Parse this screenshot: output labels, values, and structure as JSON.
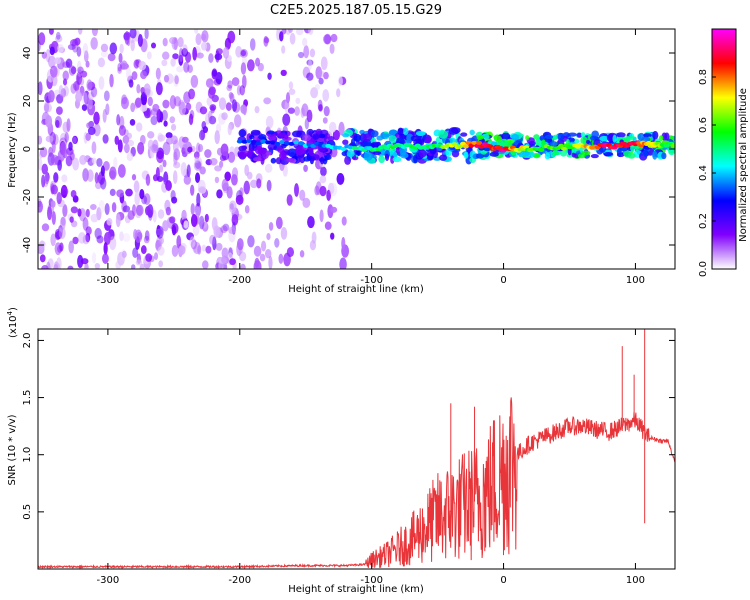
{
  "page_title": "C2E5.2025.187.05.15.G29",
  "chart_data": [
    {
      "type": "heatmap",
      "title": "C2E5.2025.187.05.15.G29",
      "xlabel": "Height of straight line (km)",
      "ylabel": "Frequency (Hz)",
      "xlim": [
        -353,
        130
      ],
      "ylim": [
        -50,
        50
      ],
      "x_ticks": [
        "-300",
        "-200",
        "-100",
        "0",
        "100"
      ],
      "y_ticks": [
        "-40",
        "-20",
        "0",
        "20",
        "40"
      ],
      "grid": false,
      "description_regions": [
        {
          "x_range": [
            -353,
            -120
          ],
          "freq_range": [
            -50,
            50
          ],
          "level": 0.1
        },
        {
          "x_range": [
            -200,
            -130
          ],
          "freq_range": [
            -5,
            7
          ],
          "level": 0.25
        },
        {
          "x_range": [
            -120,
            -20
          ],
          "freq_range": [
            -5,
            8
          ],
          "level": 0.4
        },
        {
          "x_range": [
            -20,
            130
          ],
          "freq_range": [
            -3,
            6
          ],
          "level": 0.5
        }
      ],
      "peak_track": {
        "x": [
          -200,
          -150,
          -110,
          -80,
          -50,
          -20,
          0,
          20,
          50,
          80,
          100,
          120,
          130
        ],
        "freq": [
          3,
          2,
          0,
          1,
          1,
          2,
          0,
          0,
          1,
          1,
          2,
          2,
          2
        ],
        "amplitude": [
          0.3,
          0.35,
          0.45,
          0.5,
          0.55,
          0.85,
          0.9,
          0.6,
          0.6,
          0.9,
          0.9,
          0.6,
          0.55
        ]
      },
      "colorbar": {
        "label": "Normalized spectral amplitude",
        "ticks": [
          "0.0",
          "0.2",
          "0.4",
          "0.6",
          "0.8"
        ],
        "range": [
          0,
          1
        ],
        "colors": [
          "#ffffff",
          "#8000ff",
          "#0000ff",
          "#00ffff",
          "#00ff00",
          "#ffff00",
          "#ff0000",
          "#ff00ff"
        ]
      }
    },
    {
      "type": "line",
      "xlabel": "Height of straight line (km)",
      "ylabel": "SNR (10 * v/v)",
      "y_multiplier": "(x10",
      "y_multiplier_exp": "4",
      "y_multiplier_close": ")",
      "xlim": [
        -353,
        130
      ],
      "ylim": [
        0,
        2.1
      ],
      "x_ticks": [
        "-300",
        "-200",
        "-100",
        "0",
        "100"
      ],
      "y_ticks": [
        "0.5",
        "1.0",
        "1.5",
        "2.0"
      ],
      "series": [
        {
          "color": "#e8353a",
          "x": [
            -353,
            -300,
            -250,
            -200,
            -150,
            -120,
            -105,
            -100,
            -90,
            -80,
            -70,
            -60,
            -50,
            -40,
            -30,
            -20,
            -10,
            0,
            10,
            20,
            30,
            40,
            50,
            60,
            70,
            80,
            90,
            100,
            110,
            120,
            125,
            130
          ],
          "y": [
            0.02,
            0.02,
            0.02,
            0.02,
            0.03,
            0.03,
            0.04,
            0.08,
            0.12,
            0.18,
            0.25,
            0.35,
            0.45,
            0.5,
            0.55,
            0.6,
            0.7,
            0.85,
            1.0,
            1.1,
            1.15,
            1.2,
            1.25,
            1.25,
            1.22,
            1.2,
            1.25,
            1.3,
            1.15,
            1.12,
            1.12,
            0.92
          ]
        }
      ],
      "spikes": [
        {
          "x": -40,
          "y": 1.45
        },
        {
          "x": -22,
          "y": 1.42
        },
        {
          "x": 90,
          "y": 1.95
        },
        {
          "x": 99,
          "y": 1.7
        },
        {
          "x": 107,
          "y": 2.1
        },
        {
          "x": 107,
          "y": 0.4
        }
      ]
    }
  ]
}
